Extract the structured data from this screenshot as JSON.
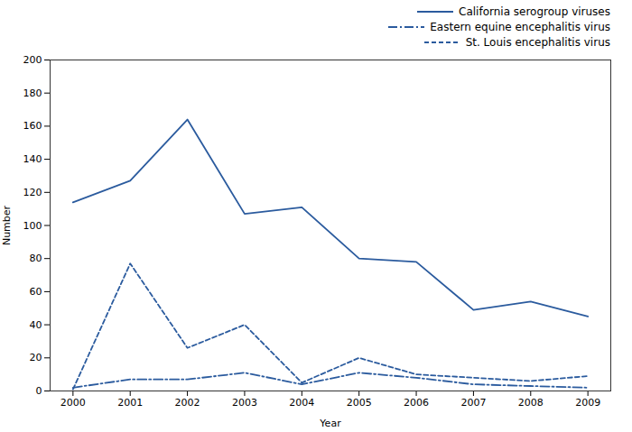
{
  "chart_data": {
    "type": "line",
    "x": [
      2000,
      2001,
      2002,
      2003,
      2004,
      2005,
      2006,
      2007,
      2008,
      2009
    ],
    "series": [
      {
        "name": "California serogroup viruses",
        "color": "#2b5b9e",
        "line_style": "solid",
        "values": [
          114,
          127,
          164,
          107,
          111,
          80,
          78,
          49,
          54,
          45
        ]
      },
      {
        "name": "Eastern equine encephalitis virus",
        "color": "#2b5b9e",
        "line_style": "dashdot",
        "values": [
          2,
          7,
          7,
          11,
          4,
          11,
          8,
          4,
          3,
          2
        ]
      },
      {
        "name": "St. Louis encephalitis virus",
        "color": "#2b5b9e",
        "line_style": "dashed",
        "values": [
          1,
          77,
          26,
          40,
          5,
          20,
          10,
          8,
          6,
          9
        ]
      }
    ],
    "xlabel": "Year",
    "ylabel": "Number",
    "xlim": [
      1999.6,
      2009.4
    ],
    "xticks": [
      2000,
      2001,
      2002,
      2003,
      2004,
      2005,
      2006,
      2007,
      2008,
      2009
    ],
    "ylim": [
      0,
      200
    ],
    "yticks": [
      0,
      20,
      40,
      60,
      80,
      100,
      120,
      140,
      160,
      180,
      200
    ],
    "grid": false,
    "legend": "upper right"
  }
}
